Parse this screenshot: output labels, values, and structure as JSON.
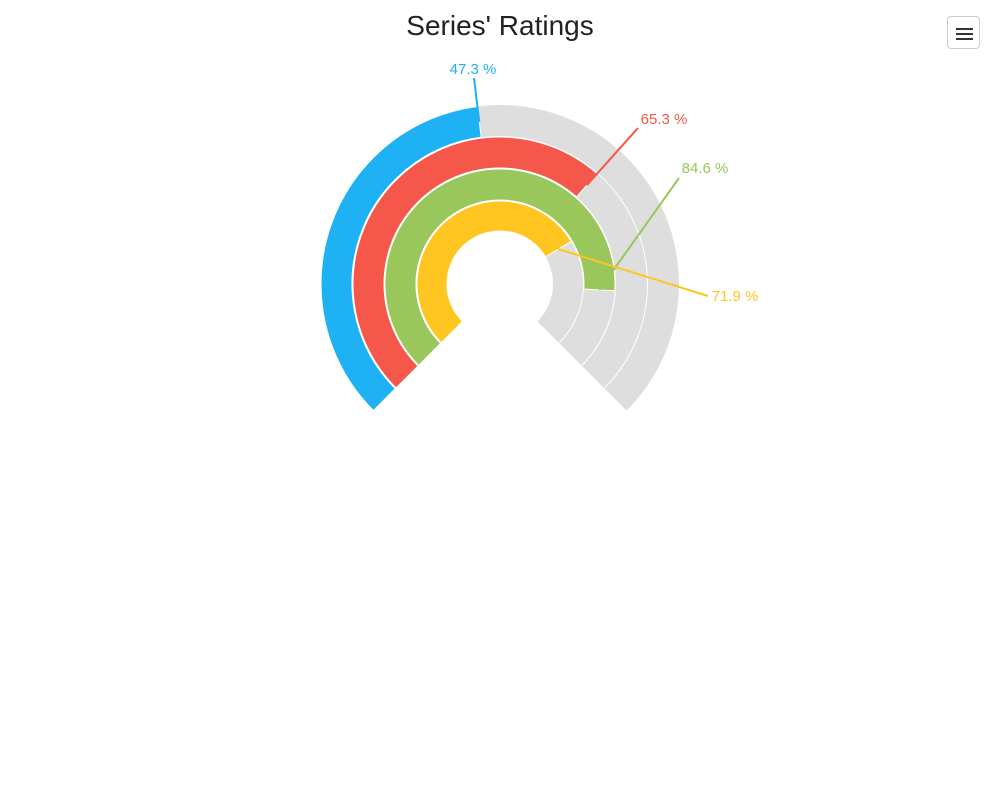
{
  "chart_data": {
    "type": "radial-bar",
    "title": "Series' Ratings",
    "series": [
      {
        "value": 47.3,
        "label": "47.3 %",
        "color": "#1eb2f5"
      },
      {
        "value": 65.3,
        "label": "65.3 %",
        "color": "#f5574a"
      },
      {
        "value": 84.6,
        "label": "84.6 %",
        "color": "#99c75b"
      },
      {
        "value": 71.9,
        "label": "71.9 %",
        "color": "#ffc622"
      }
    ],
    "max": 100,
    "track_color": "#dedede",
    "legend": "none"
  },
  "toolbar": {
    "menu_icon": "hamburger-menu-icon"
  }
}
